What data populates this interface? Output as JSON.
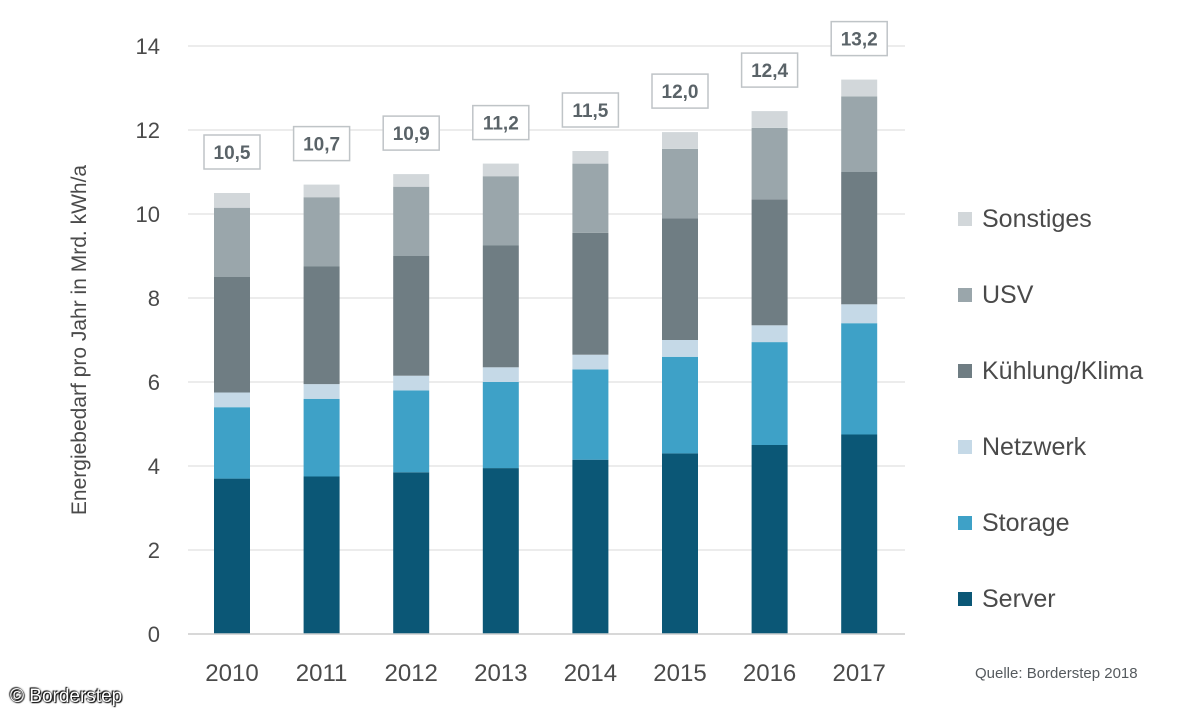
{
  "chart_data": {
    "type": "bar",
    "stacked": true,
    "categories": [
      "2010",
      "2011",
      "2012",
      "2013",
      "2014",
      "2015",
      "2016",
      "2017"
    ],
    "series": [
      {
        "name": "Server",
        "color": "#0b5776",
        "values": [
          3.7,
          3.75,
          3.85,
          3.95,
          4.15,
          4.3,
          4.5,
          4.75
        ]
      },
      {
        "name": "Storage",
        "color": "#3ea1c7",
        "values": [
          1.7,
          1.85,
          1.95,
          2.05,
          2.15,
          2.3,
          2.45,
          2.65
        ]
      },
      {
        "name": "Netzwerk",
        "color": "#c5d9e7",
        "values": [
          0.35,
          0.35,
          0.35,
          0.35,
          0.35,
          0.4,
          0.4,
          0.45
        ]
      },
      {
        "name": "Kühlung/Klima",
        "color": "#6f7d83",
        "values": [
          2.75,
          2.8,
          2.85,
          2.9,
          2.9,
          2.9,
          3.0,
          3.15
        ]
      },
      {
        "name": "USV",
        "color": "#9aa6ab",
        "values": [
          1.65,
          1.65,
          1.65,
          1.65,
          1.65,
          1.65,
          1.7,
          1.8
        ]
      },
      {
        "name": "Sonstiges",
        "color": "#d2d7da",
        "values": [
          0.35,
          0.3,
          0.3,
          0.3,
          0.3,
          0.4,
          0.4,
          0.4
        ]
      }
    ],
    "totals": [
      "10,5",
      "10,7",
      "10,9",
      "11,2",
      "11,5",
      "12,0",
      "12,4",
      "13,2"
    ],
    "ylabel": "Energiebedarf pro Jahr in Mrd. kWh/a",
    "xlabel": "",
    "ylim": [
      0,
      14
    ],
    "yticks": [
      0,
      2,
      4,
      6,
      8,
      10,
      12,
      14
    ],
    "grid": true,
    "legend_position": "right"
  },
  "source": "Quelle: Borderstep 2018",
  "copyright": "© Borderstep"
}
